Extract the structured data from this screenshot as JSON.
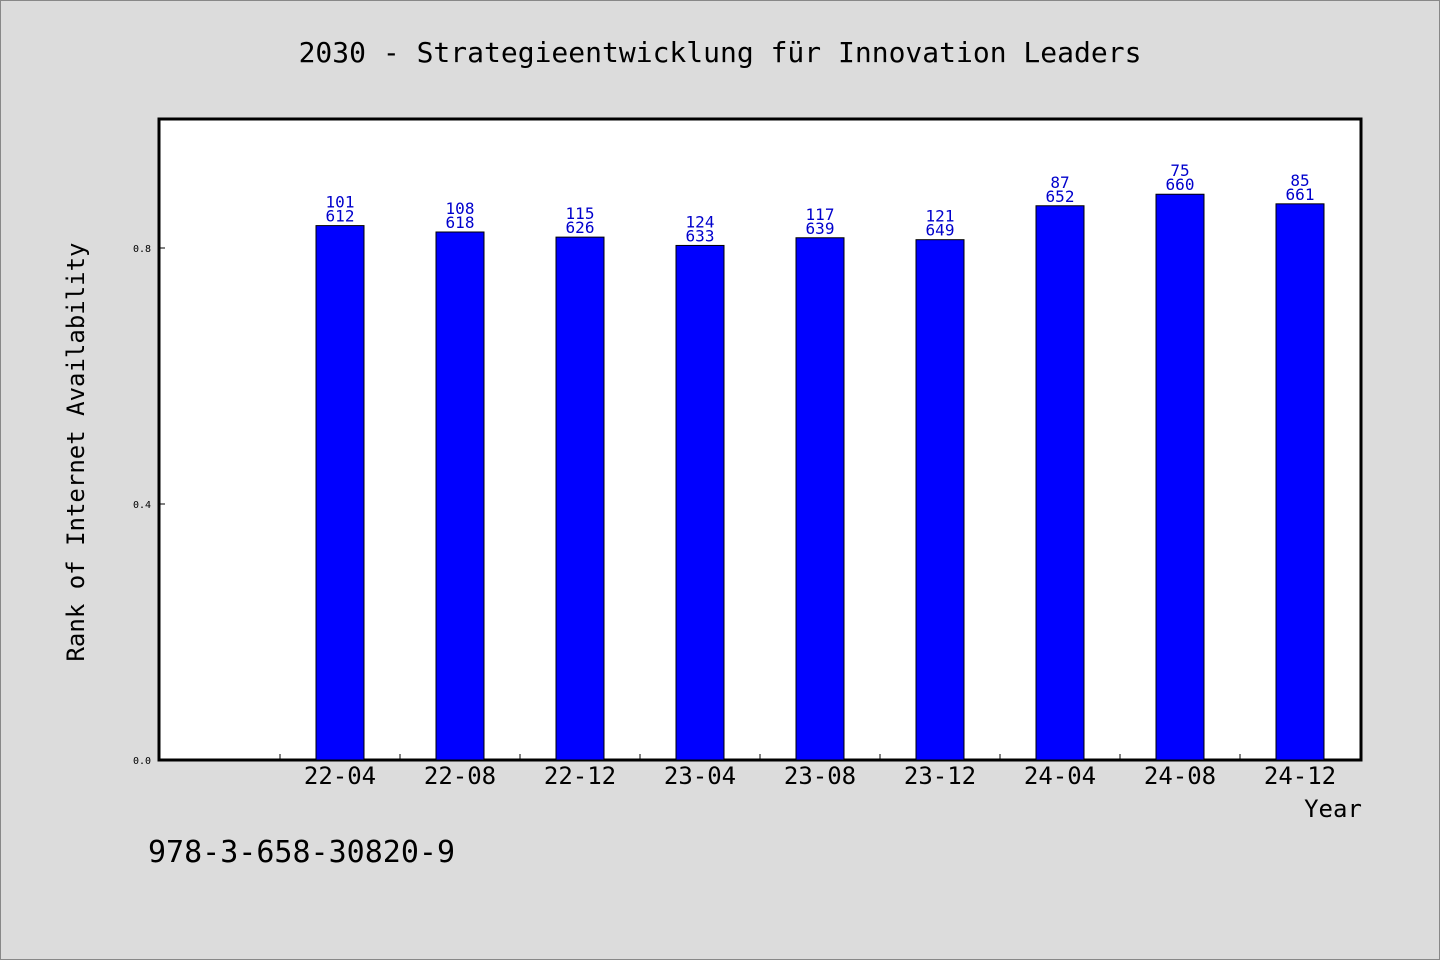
{
  "chart_data": {
    "type": "bar",
    "title": "2030 - Strategieentwicklung für Innovation Leaders",
    "xlabel": "Year",
    "ylabel": "Rank of Internet Availability",
    "categories": [
      "22-04",
      "22-08",
      "22-12",
      "23-04",
      "23-08",
      "23-12",
      "24-04",
      "24-08",
      "24-12"
    ],
    "values": [
      0.835,
      0.825,
      0.817,
      0.804,
      0.816,
      0.813,
      0.866,
      0.884,
      0.869
    ],
    "label_top": [
      "101",
      "108",
      "115",
      "124",
      "117",
      "121",
      "87",
      "75",
      "85"
    ],
    "label_bottom": [
      "612",
      "618",
      "626",
      "633",
      "639",
      "649",
      "652",
      "660",
      "661"
    ],
    "y_ticks": [
      "0.0",
      "0.4",
      "0.8"
    ],
    "ylim": [
      0,
      1.0
    ],
    "grid": false,
    "legend": "none"
  },
  "footer": {
    "isbn": "978-3-658-30820-9"
  },
  "colors": {
    "bar": "#0000ff",
    "bar_stroke": "#000000",
    "label": "#0000cc",
    "plot_bg": "#ffffff",
    "page_bg": "#dcdcdc"
  }
}
